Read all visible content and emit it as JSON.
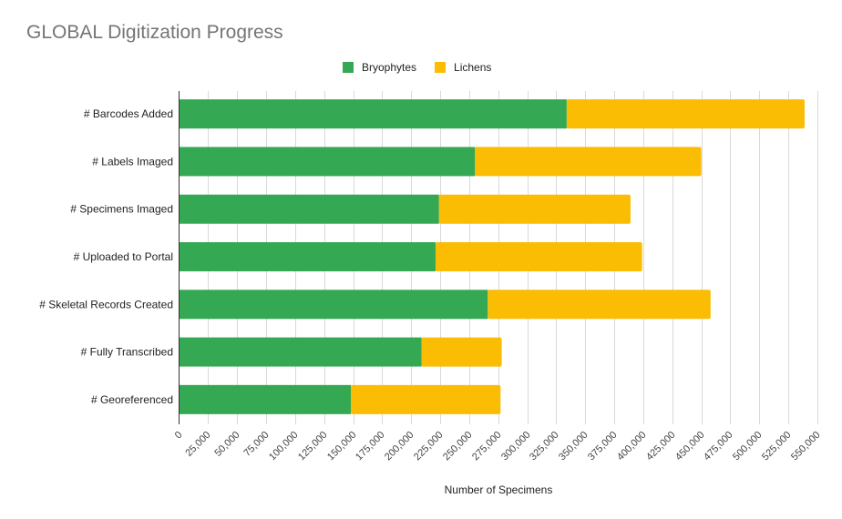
{
  "chart_data": {
    "type": "bar",
    "orientation": "horizontal",
    "stacked": true,
    "title": "GLOBAL Digitization Progress",
    "xlabel": "Number of Specimens",
    "ylabel": "",
    "categories": [
      "# Barcodes Added",
      "# Labels Imaged",
      "# Specimens Imaged",
      "# Uploaded to Portal",
      "# Skeletal Records Created",
      "# Fully Transcribed",
      "# Georeferenced"
    ],
    "series": [
      {
        "name": "Bryophytes",
        "color": "#34a853",
        "values": [
          334000,
          255000,
          224000,
          221000,
          266000,
          209000,
          148000
        ]
      },
      {
        "name": "Lichens",
        "color": "#fbbc04",
        "values": [
          205000,
          195000,
          165000,
          178000,
          192000,
          69000,
          129000
        ]
      }
    ],
    "xlim": [
      0,
      550000
    ],
    "xticks": [
      "0",
      "25,000",
      "50,000",
      "75,000",
      "100,000",
      "125,000",
      "150,000",
      "175,000",
      "200,000",
      "225,000",
      "250,000",
      "275,000",
      "300,000",
      "325,000",
      "350,000",
      "375,000",
      "400,000",
      "425,000",
      "450,000",
      "475,000",
      "500,000",
      "525,000",
      "550,000"
    ],
    "xtick_step": 25000,
    "grid": true,
    "legend_position": "top"
  }
}
